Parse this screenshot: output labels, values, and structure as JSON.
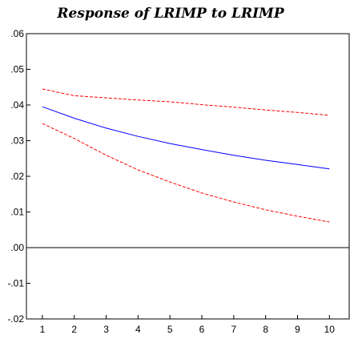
{
  "chart_data": {
    "type": "line",
    "title": "Response of LRIMP to LRIMP",
    "xlabel": "",
    "ylabel": "",
    "x": [
      1,
      2,
      3,
      4,
      5,
      6,
      7,
      8,
      9,
      10
    ],
    "xticks": [
      "1",
      "2",
      "3",
      "4",
      "5",
      "6",
      "7",
      "8",
      "9",
      "10"
    ],
    "ylim": [
      -0.02,
      0.06
    ],
    "yticks": [
      {
        "value": 0.06,
        "label": ".06"
      },
      {
        "value": 0.05,
        "label": ".05"
      },
      {
        "value": 0.04,
        "label": ".04"
      },
      {
        "value": 0.03,
        "label": ".03"
      },
      {
        "value": 0.02,
        "label": ".02"
      },
      {
        "value": 0.01,
        "label": ".01"
      },
      {
        "value": 0.0,
        "label": ".00"
      },
      {
        "value": -0.01,
        "label": "-.01"
      },
      {
        "value": -0.02,
        "label": "-.02"
      }
    ],
    "zero_line": 0,
    "grid": false,
    "legend": "none",
    "series": [
      {
        "role": "response",
        "color": "#0000ff",
        "style": "solid",
        "values": [
          0.0395,
          0.0363,
          0.0335,
          0.0312,
          0.0292,
          0.0275,
          0.0259,
          0.0245,
          0.0233,
          0.0221
        ]
      },
      {
        "role": "upper-band",
        "color": "#ff0000",
        "style": "dashed",
        "values": [
          0.0445,
          0.0426,
          0.042,
          0.0414,
          0.0409,
          0.0401,
          0.0394,
          0.0386,
          0.0379,
          0.0371
        ]
      },
      {
        "role": "lower-band",
        "color": "#ff0000",
        "style": "dashed",
        "values": [
          0.0348,
          0.0306,
          0.0259,
          0.0218,
          0.0184,
          0.0153,
          0.0128,
          0.0106,
          0.0088,
          0.0072
        ]
      }
    ]
  }
}
